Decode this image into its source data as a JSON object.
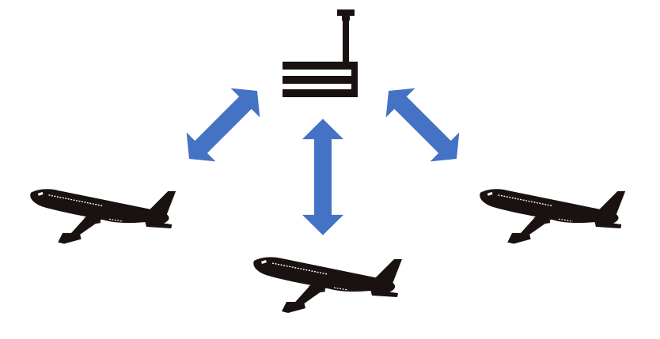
{
  "diagram": {
    "nodes": [
      {
        "id": "tower",
        "icon": "control-tower-icon"
      },
      {
        "id": "aircraft-left",
        "icon": "airplane-icon"
      },
      {
        "id": "aircraft-center",
        "icon": "airplane-icon"
      },
      {
        "id": "aircraft-right",
        "icon": "airplane-icon"
      }
    ],
    "edges": [
      {
        "from": "tower",
        "to": "aircraft-left",
        "direction": "bidirectional"
      },
      {
        "from": "tower",
        "to": "aircraft-center",
        "direction": "bidirectional"
      },
      {
        "from": "tower",
        "to": "aircraft-right",
        "direction": "bidirectional"
      }
    ]
  },
  "colors": {
    "arrow": "#4472c4",
    "silhouette": "#1a1210",
    "window": "#ffffff",
    "background": "#ffffff"
  }
}
